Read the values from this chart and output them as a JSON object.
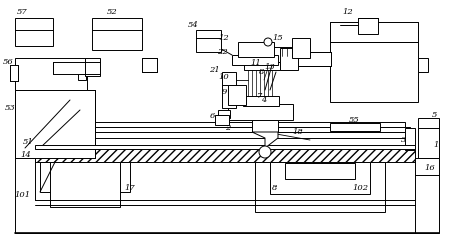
{
  "bg_color": "#ffffff",
  "line_color": "#000000",
  "lw": 0.7,
  "hatch_lw": 0.4,
  "label_fs": 6.0
}
